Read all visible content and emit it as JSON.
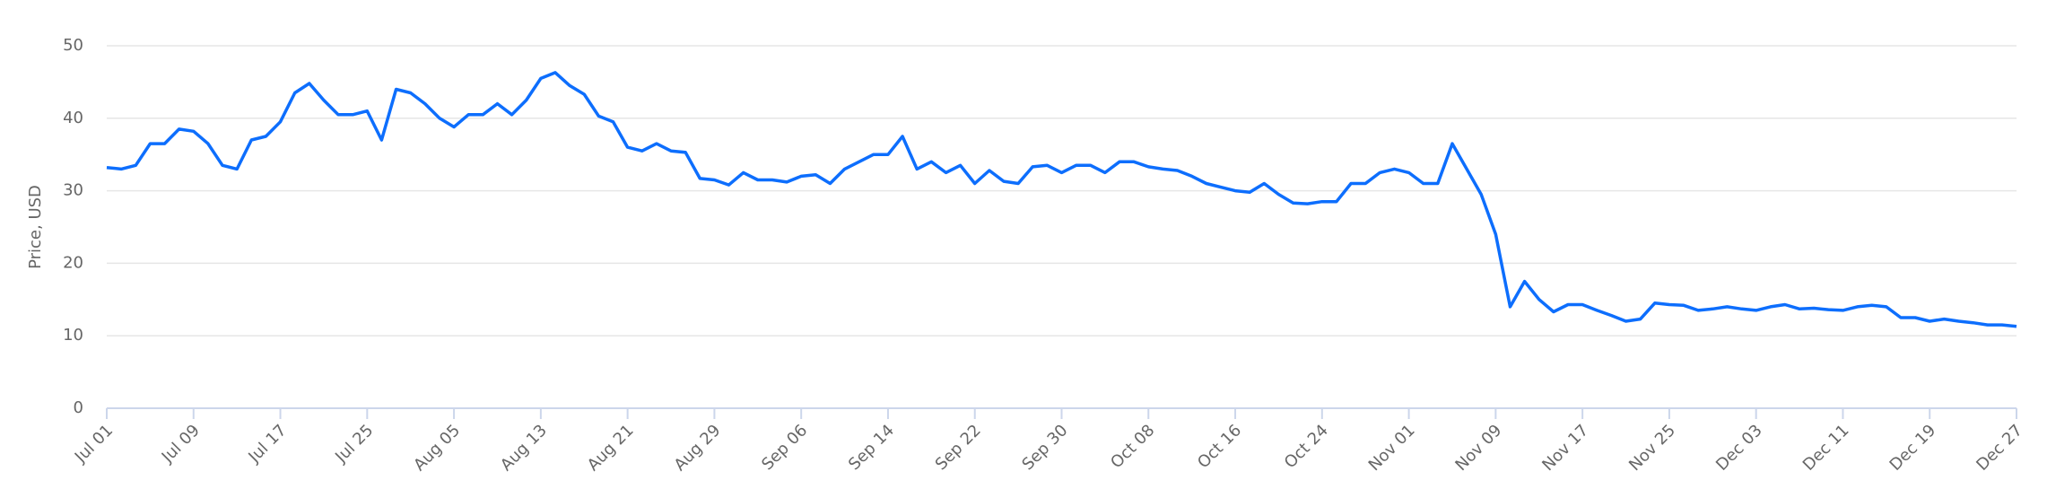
{
  "chart_data": {
    "type": "line",
    "y_label": "Price, USD",
    "categories": [
      "Jul 01",
      null,
      null,
      null,
      null,
      null,
      "Jul 09",
      null,
      null,
      null,
      null,
      null,
      "Jul 17",
      null,
      null,
      null,
      null,
      null,
      "Jul 25",
      null,
      null,
      null,
      null,
      null,
      "Aug 05",
      null,
      null,
      null,
      null,
      null,
      "Aug 13",
      null,
      null,
      null,
      null,
      null,
      "Aug 21",
      null,
      null,
      null,
      null,
      null,
      "Aug 29",
      null,
      null,
      null,
      null,
      null,
      "Sep 06",
      null,
      null,
      null,
      null,
      null,
      "Sep 14",
      null,
      null,
      null,
      null,
      null,
      "Sep 22",
      null,
      null,
      null,
      null,
      null,
      "Sep 30",
      null,
      null,
      null,
      null,
      null,
      "Oct 08",
      null,
      null,
      null,
      null,
      null,
      "Oct 16",
      null,
      null,
      null,
      null,
      null,
      "Oct 24",
      null,
      null,
      null,
      null,
      null,
      "Nov 01",
      null,
      null,
      null,
      null,
      null,
      "Nov 09",
      null,
      null,
      null,
      null,
      null,
      "Nov 17",
      null,
      null,
      null,
      null,
      null,
      "Nov 25",
      null,
      null,
      null,
      null,
      null,
      "Dec 03",
      null,
      null,
      null,
      null,
      null,
      "Dec 11",
      null,
      null,
      null,
      null,
      null,
      "Dec 19",
      null,
      null,
      null,
      null,
      null,
      "Dec 27"
    ],
    "series": [
      {
        "name": "Price",
        "color": "#0d6efd",
        "values": [
          33.2,
          33.0,
          33.5,
          36.5,
          36.5,
          38.5,
          38.2,
          36.5,
          33.5,
          33.0,
          37.0,
          37.5,
          39.5,
          43.5,
          44.8,
          42.5,
          40.5,
          40.5,
          41.0,
          37.0,
          44.0,
          43.5,
          42.0,
          40.0,
          38.8,
          40.5,
          40.5,
          42.0,
          40.5,
          42.5,
          45.5,
          46.3,
          44.5,
          43.3,
          40.3,
          39.5,
          36.0,
          35.5,
          36.5,
          35.5,
          35.3,
          31.7,
          31.5,
          30.8,
          32.5,
          31.5,
          31.5,
          31.2,
          32.0,
          32.2,
          31.0,
          33.0,
          34.0,
          35.0,
          35.0,
          37.5,
          33.0,
          34.0,
          32.5,
          33.5,
          31.0,
          32.8,
          31.3,
          31.0,
          33.3,
          33.5,
          32.5,
          33.5,
          33.5,
          32.5,
          34.0,
          34.0,
          33.3,
          33.0,
          32.8,
          32.0,
          31.0,
          30.5,
          30.0,
          29.8,
          31.0,
          29.5,
          28.3,
          28.2,
          28.5,
          28.5,
          31.0,
          31.0,
          32.5,
          33.0,
          32.5,
          31.0,
          31.0,
          36.5,
          33.0,
          29.5,
          24.0,
          14.0,
          17.5,
          15.0,
          13.3,
          14.3,
          14.3,
          13.5,
          12.8,
          12.0,
          12.3,
          14.5,
          14.3,
          14.2,
          13.5,
          13.7,
          14.0,
          13.7,
          13.5,
          14.0,
          14.3,
          13.7,
          13.8,
          13.6,
          13.5,
          14.0,
          14.2,
          14.0,
          12.5,
          12.5,
          12.0,
          12.3,
          12.0,
          11.8,
          11.5,
          11.5,
          11.3
        ]
      }
    ],
    "ylim": [
      0,
      50
    ],
    "yticks": [
      0,
      10,
      20,
      30,
      40,
      50
    ],
    "grid": true
  }
}
